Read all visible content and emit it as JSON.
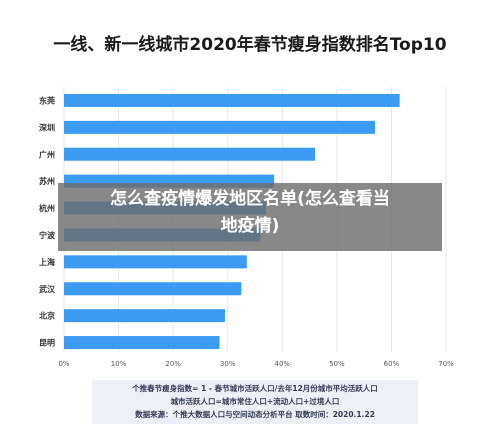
{
  "title": "一线、新一线城市2020年春节瘦身指数排名Top10",
  "overlay": {
    "line1": "怎么查疫情爆发地区名单(怎么查看当",
    "line2": "地疫情)"
  },
  "notes": [
    "个推春节瘦身指数= 1 - 春节城市活跃人口/去年12月份城市平均活跃人口",
    "城市活跃人口=城市常住人口+流动人口+过境人口",
    "数据来源：个推大数据人口与空间动态分析平台 取数时间：2020.1.22"
  ],
  "chart_data": {
    "type": "bar",
    "orientation": "horizontal",
    "categories": [
      "东莞",
      "深圳",
      "广州",
      "苏州",
      "杭州",
      "宁波",
      "上海",
      "武汉",
      "北京",
      "昆明"
    ],
    "values": [
      61.5,
      57,
      46,
      38.5,
      37,
      36,
      33.5,
      32.5,
      29.5,
      28.5
    ],
    "unit": "%",
    "xlim": [
      0,
      70
    ],
    "xticks": [
      "0%",
      "10%",
      "20%",
      "30%",
      "40%",
      "50%",
      "60%",
      "70%"
    ],
    "grid": true,
    "colors": {
      "bar": "#3b9af2",
      "grid": "#e6e6e6",
      "text": "#333333"
    }
  }
}
